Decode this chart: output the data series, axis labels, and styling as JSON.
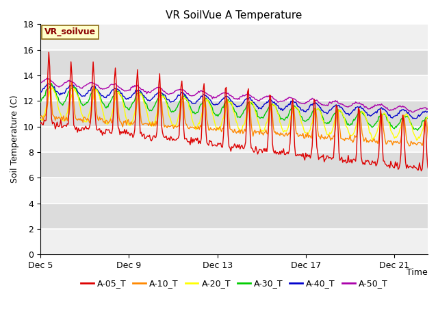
{
  "title": "VR SoilVue A Temperature",
  "ylabel": "Soil Temperature (C)",
  "xlabel": "Time",
  "annotation_text": "VR_soilvue",
  "ylim": [
    0,
    18
  ],
  "yticks": [
    0,
    2,
    4,
    6,
    8,
    10,
    12,
    14,
    16,
    18
  ],
  "x_tick_labels": [
    "Dec 5",
    "Dec 9",
    "Dec 13",
    "Dec 17",
    "Dec 21"
  ],
  "x_tick_positions": [
    0,
    4,
    8,
    12,
    16
  ],
  "xlim": [
    0,
    17.5
  ],
  "series_colors": {
    "A-05_T": "#dd0000",
    "A-10_T": "#ff8800",
    "A-20_T": "#ffff00",
    "A-30_T": "#00cc00",
    "A-40_T": "#0000cc",
    "A-50_T": "#aa00aa"
  },
  "background_color": "#ffffff",
  "plot_bg_color": "#f0f0f0",
  "band_color_dark": "#dcdcdc",
  "band_color_light": "#f0f0f0",
  "grid_color": "#ffffff",
  "title_fontsize": 11,
  "axis_fontsize": 9,
  "legend_fontsize": 9,
  "annotation_fontsize": 9,
  "figsize": [
    6.4,
    4.8
  ],
  "dpi": 100
}
